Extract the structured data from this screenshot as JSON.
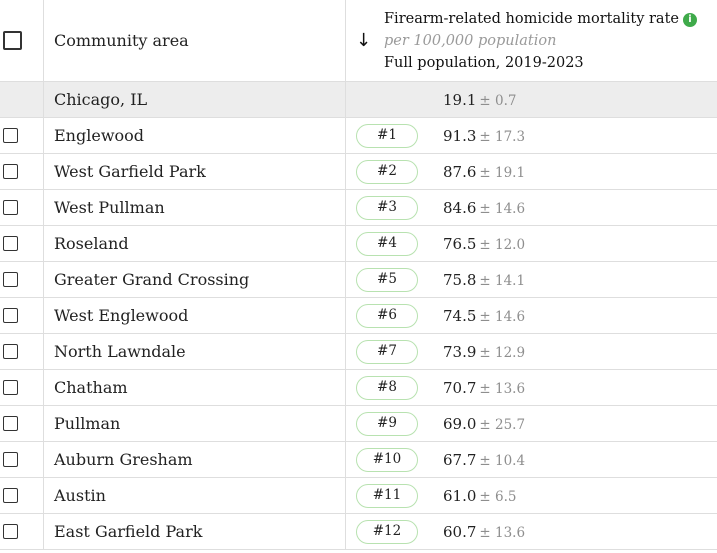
{
  "header": {
    "column_name": "Community area",
    "metric_title": "Firearm-related homicide mortality rate",
    "metric_unit": "per 100,000 population",
    "metric_period": "Full population, 2019-2023",
    "sort_icon": "arrow-down-icon",
    "info_icon": "info-icon"
  },
  "city": {
    "name": "Chicago, IL",
    "rate": "19.1",
    "margin": "± 0.7"
  },
  "rows": [
    {
      "name": "Englewood",
      "rank": "#1",
      "rate": "91.3",
      "margin": "± 17.3"
    },
    {
      "name": "West Garfield Park",
      "rank": "#2",
      "rate": "87.6",
      "margin": "± 19.1"
    },
    {
      "name": "West Pullman",
      "rank": "#3",
      "rate": "84.6",
      "margin": "± 14.6"
    },
    {
      "name": "Roseland",
      "rank": "#4",
      "rate": "76.5",
      "margin": "± 12.0"
    },
    {
      "name": "Greater Grand Crossing",
      "rank": "#5",
      "rate": "75.8",
      "margin": "± 14.1"
    },
    {
      "name": "West Englewood",
      "rank": "#6",
      "rate": "74.5",
      "margin": "± 14.6"
    },
    {
      "name": "North Lawndale",
      "rank": "#7",
      "rate": "73.9",
      "margin": "± 12.9"
    },
    {
      "name": "Chatham",
      "rank": "#8",
      "rate": "70.7",
      "margin": "± 13.6"
    },
    {
      "name": "Pullman",
      "rank": "#9",
      "rate": "69.0",
      "margin": "± 25.7"
    },
    {
      "name": "Auburn Gresham",
      "rank": "#10",
      "rate": "67.7",
      "margin": "± 10.4"
    },
    {
      "name": "Austin",
      "rank": "#11",
      "rate": "61.0",
      "margin": "± 6.5"
    },
    {
      "name": "East Garfield Park",
      "rank": "#12",
      "rate": "60.7",
      "margin": "± 13.6"
    }
  ],
  "colors": {
    "accent_green": "#3faa4a",
    "badge_border": "#b8e2b0",
    "city_row_bg": "#ededed",
    "border": "#dedede"
  }
}
